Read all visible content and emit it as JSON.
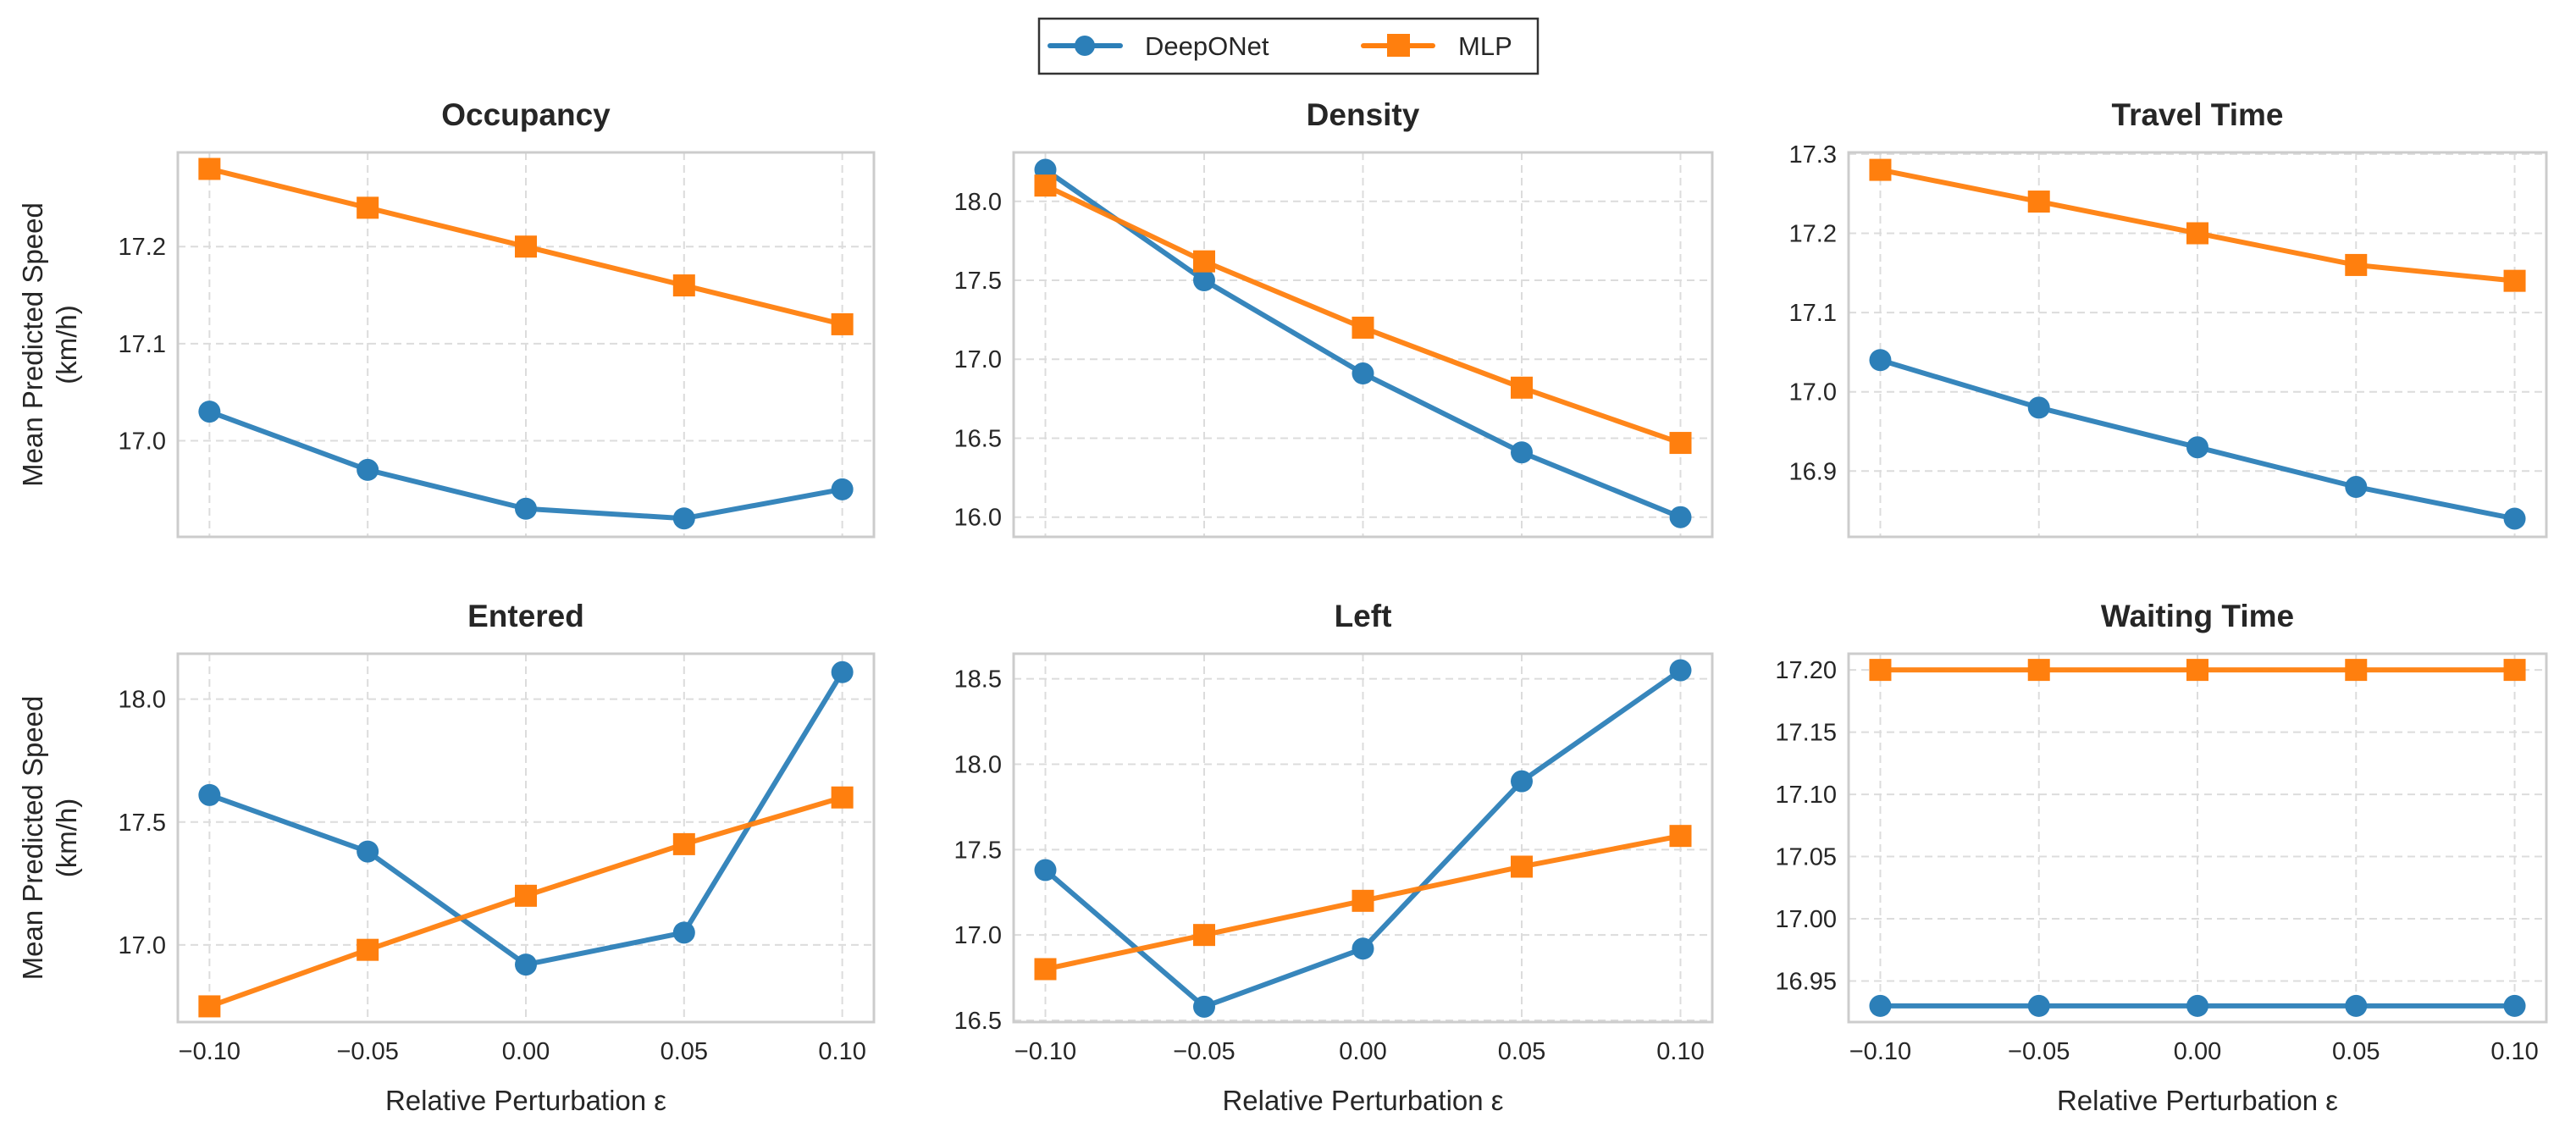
{
  "chart_data": {
    "type": "line",
    "legend": {
      "placement": "top-center",
      "entries": [
        "DeepONet",
        "MLP"
      ]
    },
    "series_style": {
      "DeepONet": {
        "color": "#2c7fb8",
        "marker": "circle"
      },
      "MLP": {
        "color": "#ff7f0e",
        "marker": "square"
      }
    },
    "x": [
      -0.1,
      -0.05,
      0.0,
      0.05,
      0.1
    ],
    "xlim": [
      -0.11,
      0.11
    ],
    "xticks": [
      "−0.10",
      "−0.05",
      "0.00",
      "0.05",
      "0.10"
    ],
    "xlabel": "Relative Perturbation ε",
    "ylabel": [
      "Mean Predicted Speed",
      "(km/h)"
    ],
    "grid": true,
    "panels": [
      {
        "title": "Occupancy",
        "ylim": [
          16.901,
          17.297
        ],
        "yticks": [
          17.0,
          17.1,
          17.2
        ],
        "ytick_labels": [
          "17.0",
          "17.1",
          "17.2"
        ],
        "series": [
          {
            "name": "DeepONet",
            "values": [
              17.03,
              16.97,
              16.93,
              16.92,
              16.95
            ]
          },
          {
            "name": "MLP",
            "values": [
              17.28,
              17.24,
              17.2,
              17.16,
              17.12
            ]
          }
        ]
      },
      {
        "title": "Density",
        "ylim": [
          15.875,
          18.31
        ],
        "yticks": [
          16.0,
          16.5,
          17.0,
          17.5,
          18.0
        ],
        "ytick_labels": [
          "16.0",
          "16.5",
          "17.0",
          "17.5",
          "18.0"
        ],
        "series": [
          {
            "name": "DeepONet",
            "values": [
              18.2,
              17.5,
              16.91,
              16.41,
              16.0
            ]
          },
          {
            "name": "MLP",
            "values": [
              18.1,
              17.62,
              17.2,
              16.82,
              16.47
            ]
          }
        ]
      },
      {
        "title": "Travel Time",
        "ylim": [
          16.817,
          17.302
        ],
        "yticks": [
          16.9,
          17.0,
          17.1,
          17.2,
          17.3
        ],
        "ytick_labels": [
          "16.9",
          "17.0",
          "17.1",
          "17.2",
          "17.3"
        ],
        "series": [
          {
            "name": "DeepONet",
            "values": [
              17.04,
              16.98,
              16.93,
              16.88,
              16.84
            ]
          },
          {
            "name": "MLP",
            "values": [
              17.28,
              17.24,
              17.2,
              17.16,
              17.14
            ]
          }
        ]
      },
      {
        "title": "Entered",
        "ylim": [
          16.686,
          18.185
        ],
        "yticks": [
          17.0,
          17.5,
          18.0
        ],
        "ytick_labels": [
          "17.0",
          "17.5",
          "18.0"
        ],
        "series": [
          {
            "name": "DeepONet",
            "values": [
              17.61,
              17.38,
              16.92,
              17.05,
              18.11
            ]
          },
          {
            "name": "MLP",
            "values": [
              16.75,
              16.98,
              17.2,
              17.41,
              17.6
            ]
          }
        ]
      },
      {
        "title": "Left",
        "ylim": [
          16.49,
          18.647
        ],
        "yticks": [
          16.5,
          17.0,
          17.5,
          18.0,
          18.5
        ],
        "ytick_labels": [
          "16.5",
          "17.0",
          "17.5",
          "18.0",
          "18.5"
        ],
        "series": [
          {
            "name": "DeepONet",
            "values": [
              17.38,
              16.58,
              16.92,
              17.9,
              18.55
            ]
          },
          {
            "name": "MLP",
            "values": [
              16.8,
              17.0,
              17.2,
              17.4,
              17.58
            ]
          }
        ]
      },
      {
        "title": "Waiting Time",
        "ylim": [
          16.917,
          17.213
        ],
        "yticks": [
          16.95,
          17.0,
          17.05,
          17.1,
          17.15,
          17.2
        ],
        "ytick_labels": [
          "16.95",
          "17.00",
          "17.05",
          "17.10",
          "17.15",
          "17.20"
        ],
        "series": [
          {
            "name": "DeepONet",
            "values": [
              16.93,
              16.93,
              16.93,
              16.93,
              16.93
            ]
          },
          {
            "name": "MLP",
            "values": [
              17.2,
              17.2,
              17.2,
              17.2,
              17.2
            ]
          }
        ]
      }
    ]
  }
}
